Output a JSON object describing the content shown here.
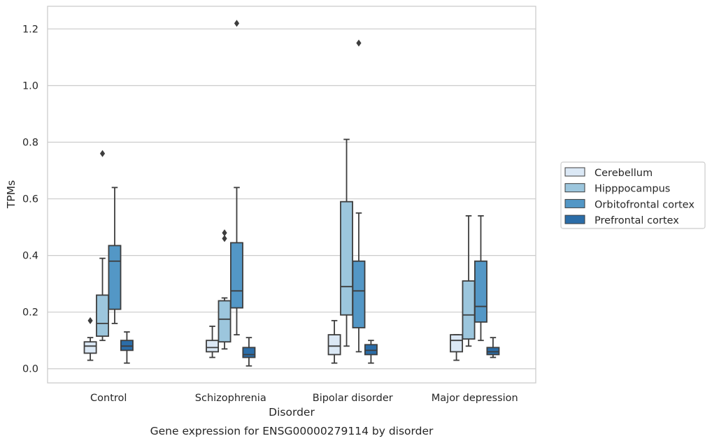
{
  "chart_data": {
    "type": "box",
    "caption": "Gene expression for ENSG00000279114 by disorder",
    "xlabel": "Disorder",
    "ylabel": "TPMs",
    "ylim": [
      -0.05,
      1.28
    ],
    "yticks": [
      0.0,
      0.2,
      0.4,
      0.6,
      0.8,
      1.0,
      1.2
    ],
    "ytick_labels": [
      "0.0",
      "0.2",
      "0.4",
      "0.6",
      "0.8",
      "1.0",
      "1.2"
    ],
    "grid": "horizontal",
    "legend_position": "right",
    "categories": [
      "Control",
      "Schizophrenia",
      "Bipolar disorder",
      "Major depression"
    ],
    "series": [
      {
        "name": "Cerebellum",
        "color": "#dbe8f5",
        "boxes": [
          {
            "whislo": 0.03,
            "q1": 0.055,
            "med": 0.08,
            "q3": 0.095,
            "whishi": 0.11,
            "fliers": [
              0.17
            ]
          },
          {
            "whislo": 0.04,
            "q1": 0.06,
            "med": 0.075,
            "q3": 0.1,
            "whishi": 0.15,
            "fliers": []
          },
          {
            "whislo": 0.02,
            "q1": 0.05,
            "med": 0.08,
            "q3": 0.12,
            "whishi": 0.17,
            "fliers": []
          },
          {
            "whislo": 0.03,
            "q1": 0.06,
            "med": 0.1,
            "q3": 0.12,
            "whishi": 0.12,
            "fliers": []
          }
        ]
      },
      {
        "name": "Hipppocampus",
        "color": "#9cc6dd",
        "boxes": [
          {
            "whislo": 0.1,
            "q1": 0.115,
            "med": 0.16,
            "q3": 0.26,
            "whishi": 0.39,
            "fliers": [
              0.76
            ]
          },
          {
            "whislo": 0.07,
            "q1": 0.095,
            "med": 0.175,
            "q3": 0.24,
            "whishi": 0.25,
            "fliers": [
              0.46,
              0.48
            ]
          },
          {
            "whislo": 0.08,
            "q1": 0.19,
            "med": 0.29,
            "q3": 0.59,
            "whishi": 0.81,
            "fliers": []
          },
          {
            "whislo": 0.08,
            "q1": 0.105,
            "med": 0.19,
            "q3": 0.31,
            "whishi": 0.54,
            "fliers": []
          }
        ]
      },
      {
        "name": "Orbitofrontal cortex",
        "color": "#5397c6",
        "boxes": [
          {
            "whislo": 0.16,
            "q1": 0.21,
            "med": 0.38,
            "q3": 0.435,
            "whishi": 0.64,
            "fliers": []
          },
          {
            "whislo": 0.12,
            "q1": 0.215,
            "med": 0.275,
            "q3": 0.445,
            "whishi": 0.64,
            "fliers": [
              1.22
            ]
          },
          {
            "whislo": 0.06,
            "q1": 0.145,
            "med": 0.275,
            "q3": 0.38,
            "whishi": 0.55,
            "fliers": [
              1.15
            ]
          },
          {
            "whislo": 0.1,
            "q1": 0.165,
            "med": 0.22,
            "q3": 0.38,
            "whishi": 0.54,
            "fliers": []
          }
        ]
      },
      {
        "name": "Prefrontal cortex",
        "color": "#2b6da8",
        "boxes": [
          {
            "whislo": 0.02,
            "q1": 0.065,
            "med": 0.08,
            "q3": 0.1,
            "whishi": 0.13,
            "fliers": []
          },
          {
            "whislo": 0.01,
            "q1": 0.04,
            "med": 0.05,
            "q3": 0.075,
            "whishi": 0.11,
            "fliers": []
          },
          {
            "whislo": 0.02,
            "q1": 0.05,
            "med": 0.065,
            "q3": 0.085,
            "whishi": 0.1,
            "fliers": []
          },
          {
            "whislo": 0.04,
            "q1": 0.05,
            "med": 0.06,
            "q3": 0.075,
            "whishi": 0.11,
            "fliers": []
          }
        ]
      }
    ]
  }
}
